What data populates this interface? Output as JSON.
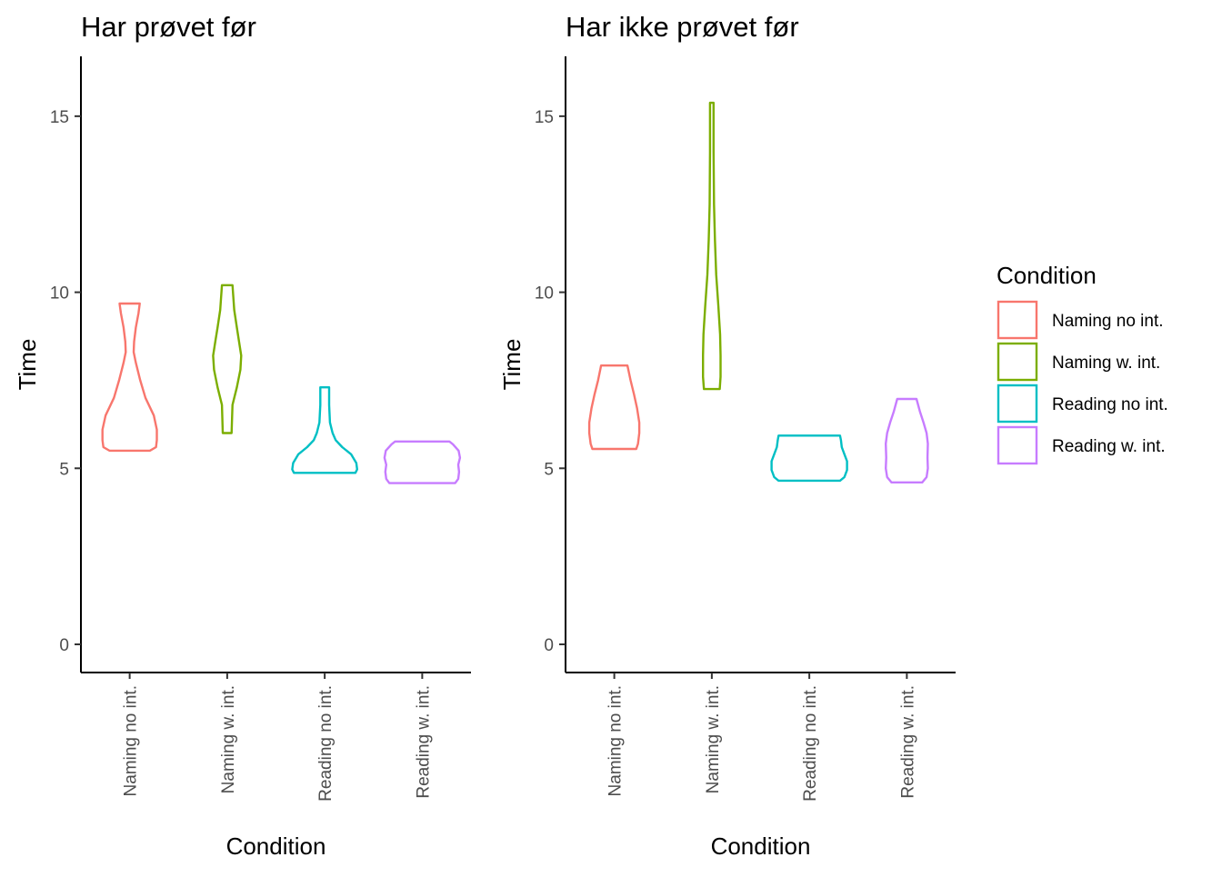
{
  "chart_data": {
    "type": "violin",
    "legend": {
      "title": "Condition",
      "placement": "right",
      "entries": [
        {
          "label": "Naming no int.",
          "color": "#F8766D"
        },
        {
          "label": "Naming w. int.",
          "color": "#7CAE00"
        },
        {
          "label": "Reading no int.",
          "color": "#00BFC4"
        },
        {
          "label": "Reading w. int.",
          "color": "#C77CFF"
        }
      ]
    },
    "panels": [
      {
        "title": "Har prøvet før",
        "xlabel": "Condition",
        "ylabel": "Time",
        "ylim": [
          -0.8,
          16.7
        ],
        "yticks": [
          0,
          5,
          10,
          15
        ],
        "categories": [
          "Naming no int.",
          "Naming w. int.",
          "Reading no int.",
          "Reading w. int."
        ],
        "violins": [
          {
            "category": "Naming no int.",
            "color": "#F8766D",
            "profile": [
              [
                5.5,
                0.46
              ],
              [
                5.6,
                0.6
              ],
              [
                5.8,
                0.62
              ],
              [
                6.1,
                0.62
              ],
              [
                6.5,
                0.55
              ],
              [
                7.0,
                0.36
              ],
              [
                7.5,
                0.24
              ],
              [
                8.0,
                0.14
              ],
              [
                8.3,
                0.09
              ],
              [
                8.6,
                0.1
              ],
              [
                9.0,
                0.14
              ],
              [
                9.4,
                0.2
              ],
              [
                9.68,
                0.23
              ]
            ]
          },
          {
            "category": "Naming w. int.",
            "color": "#7CAE00",
            "profile": [
              [
                6.0,
                0.1
              ],
              [
                6.8,
                0.12
              ],
              [
                7.3,
                0.22
              ],
              [
                7.8,
                0.3
              ],
              [
                8.2,
                0.32
              ],
              [
                8.6,
                0.27
              ],
              [
                9.0,
                0.22
              ],
              [
                9.5,
                0.16
              ],
              [
                10.2,
                0.12
              ]
            ]
          },
          {
            "category": "Reading no int.",
            "color": "#00BFC4",
            "profile": [
              [
                4.87,
                0.7
              ],
              [
                4.97,
                0.74
              ],
              [
                5.15,
                0.72
              ],
              [
                5.4,
                0.6
              ],
              [
                5.6,
                0.4
              ],
              [
                5.8,
                0.25
              ],
              [
                6.0,
                0.18
              ],
              [
                6.3,
                0.12
              ],
              [
                6.8,
                0.1
              ],
              [
                7.3,
                0.1
              ]
            ]
          },
          {
            "category": "Reading w. int.",
            "color": "#C77CFF",
            "profile": [
              [
                4.58,
                0.75
              ],
              [
                4.7,
                0.82
              ],
              [
                4.9,
                0.84
              ],
              [
                5.1,
                0.82
              ],
              [
                5.3,
                0.86
              ],
              [
                5.5,
                0.83
              ],
              [
                5.68,
                0.7
              ],
              [
                5.76,
                0.62
              ]
            ]
          }
        ]
      },
      {
        "title": "Har ikke prøvet før",
        "xlabel": "Condition",
        "ylabel": "Time",
        "ylim": [
          -0.8,
          16.7
        ],
        "yticks": [
          0,
          5,
          10,
          15
        ],
        "categories": [
          "Naming no int.",
          "Naming w. int.",
          "Reading no int.",
          "Reading w. int."
        ],
        "violins": [
          {
            "category": "Naming no int.",
            "color": "#F8766D",
            "profile": [
              [
                5.55,
                0.5
              ],
              [
                5.7,
                0.54
              ],
              [
                6.0,
                0.57
              ],
              [
                6.3,
                0.57
              ],
              [
                6.7,
                0.52
              ],
              [
                7.1,
                0.45
              ],
              [
                7.5,
                0.37
              ],
              [
                7.92,
                0.3
              ]
            ]
          },
          {
            "category": "Naming w. int.",
            "color": "#7CAE00",
            "profile": [
              [
                7.25,
                0.18
              ],
              [
                7.6,
                0.2
              ],
              [
                8.2,
                0.2
              ],
              [
                8.8,
                0.19
              ],
              [
                9.6,
                0.15
              ],
              [
                10.5,
                0.1
              ],
              [
                11.5,
                0.07
              ],
              [
                12.5,
                0.05
              ],
              [
                14.0,
                0.04
              ],
              [
                15.38,
                0.04
              ]
            ]
          },
          {
            "category": "Reading no int.",
            "color": "#00BFC4",
            "profile": [
              [
                4.65,
                0.7
              ],
              [
                4.75,
                0.8
              ],
              [
                4.95,
                0.86
              ],
              [
                5.2,
                0.86
              ],
              [
                5.4,
                0.8
              ],
              [
                5.6,
                0.74
              ],
              [
                5.8,
                0.72
              ],
              [
                5.93,
                0.7
              ]
            ]
          },
          {
            "category": "Reading w. int.",
            "color": "#C77CFF",
            "profile": [
              [
                4.6,
                0.35
              ],
              [
                4.75,
                0.45
              ],
              [
                5.0,
                0.48
              ],
              [
                5.3,
                0.47
              ],
              [
                5.7,
                0.48
              ],
              [
                6.0,
                0.45
              ],
              [
                6.3,
                0.38
              ],
              [
                6.6,
                0.3
              ],
              [
                6.97,
                0.22
              ]
            ]
          }
        ]
      }
    ]
  }
}
